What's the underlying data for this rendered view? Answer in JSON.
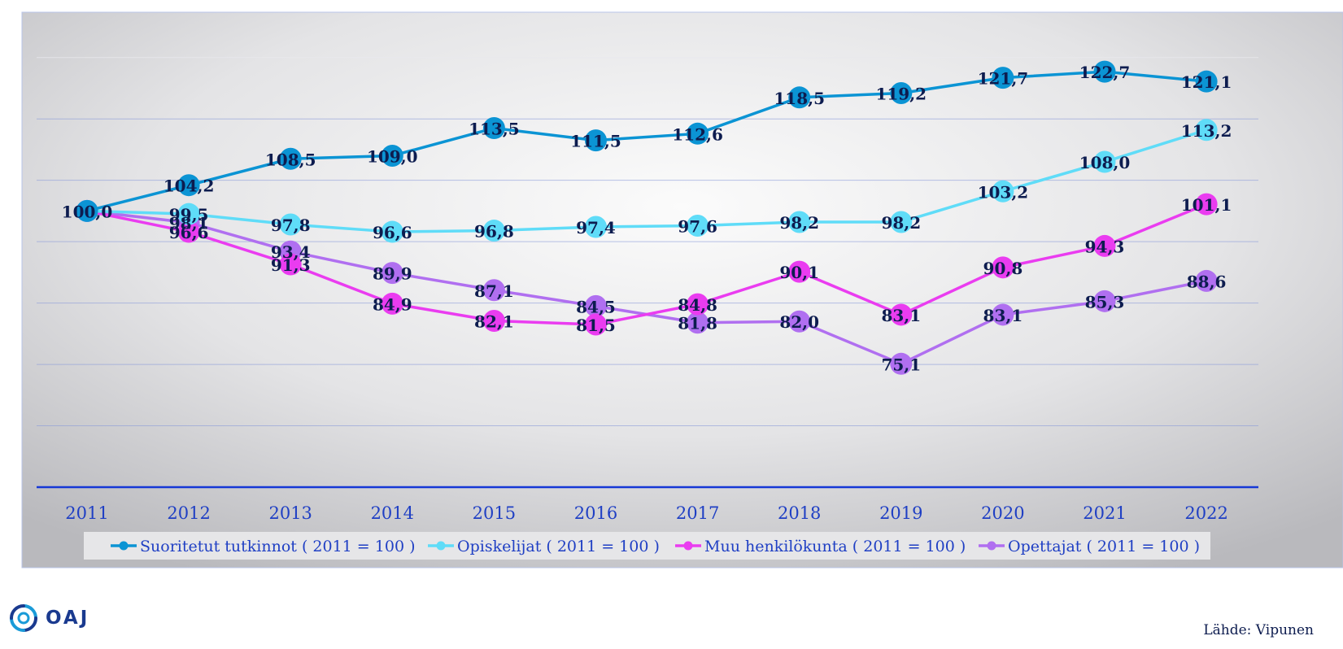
{
  "chart_data": {
    "type": "line",
    "categories": [
      "2011",
      "2012",
      "2013",
      "2014",
      "2015",
      "2016",
      "2017",
      "2018",
      "2019",
      "2020",
      "2021",
      "2022"
    ],
    "ylim": [
      55,
      130
    ],
    "grid": true,
    "legend_position": "bottom",
    "series": [
      {
        "name": "Suoritetut tutkinnot ( 2011 = 100 )",
        "color": "#0b94d4",
        "values": [
          100.0,
          104.2,
          108.5,
          109.0,
          113.5,
          111.5,
          112.6,
          118.5,
          119.2,
          121.7,
          122.7,
          121.1
        ],
        "labels": [
          "100,0",
          "104,2",
          "108,5",
          "109,0",
          "113,5",
          "111,5",
          "112,6",
          "118,5",
          "119,2",
          "121,7",
          "122,7",
          "121,1"
        ]
      },
      {
        "name": "Opiskelijat ( 2011 = 100 )",
        "color": "#5fdcf8",
        "values": [
          100.0,
          99.5,
          97.8,
          96.6,
          96.8,
          97.4,
          97.6,
          98.2,
          98.2,
          103.2,
          108.0,
          113.2
        ],
        "labels": [
          "",
          "99,5",
          "97,8",
          "96,6",
          "96,8",
          "97,4",
          "97,6",
          "98,2",
          "98,2",
          "103,2",
          "108,0",
          "113,2"
        ]
      },
      {
        "name": "Muu henkilökunta ( 2011 = 100 )",
        "color": "#ea3cf0",
        "values": [
          100.0,
          96.6,
          91.3,
          84.9,
          82.1,
          81.5,
          84.8,
          90.1,
          83.1,
          90.8,
          94.3,
          101.1
        ],
        "labels": [
          "",
          "96,6",
          "91,3",
          "84,9",
          "82,1",
          "81,5",
          "84,8",
          "90,1",
          "83,1",
          "90,8",
          "94,3",
          "101,1"
        ]
      },
      {
        "name": "Opettajat ( 2011 = 100 )",
        "color": "#b06ff0",
        "values": [
          100.0,
          98.1,
          93.4,
          89.9,
          87.1,
          84.5,
          81.8,
          82.0,
          75.1,
          83.1,
          85.3,
          88.6
        ],
        "labels": [
          "",
          "98,1",
          "93,4",
          "89,9",
          "87,1",
          "84,5",
          "81,8",
          "82,0",
          "75,1",
          "83,1",
          "85,3",
          "88,6"
        ]
      }
    ]
  },
  "footer": {
    "logo_text": "OAJ",
    "source": "Lähde: Vipunen"
  }
}
